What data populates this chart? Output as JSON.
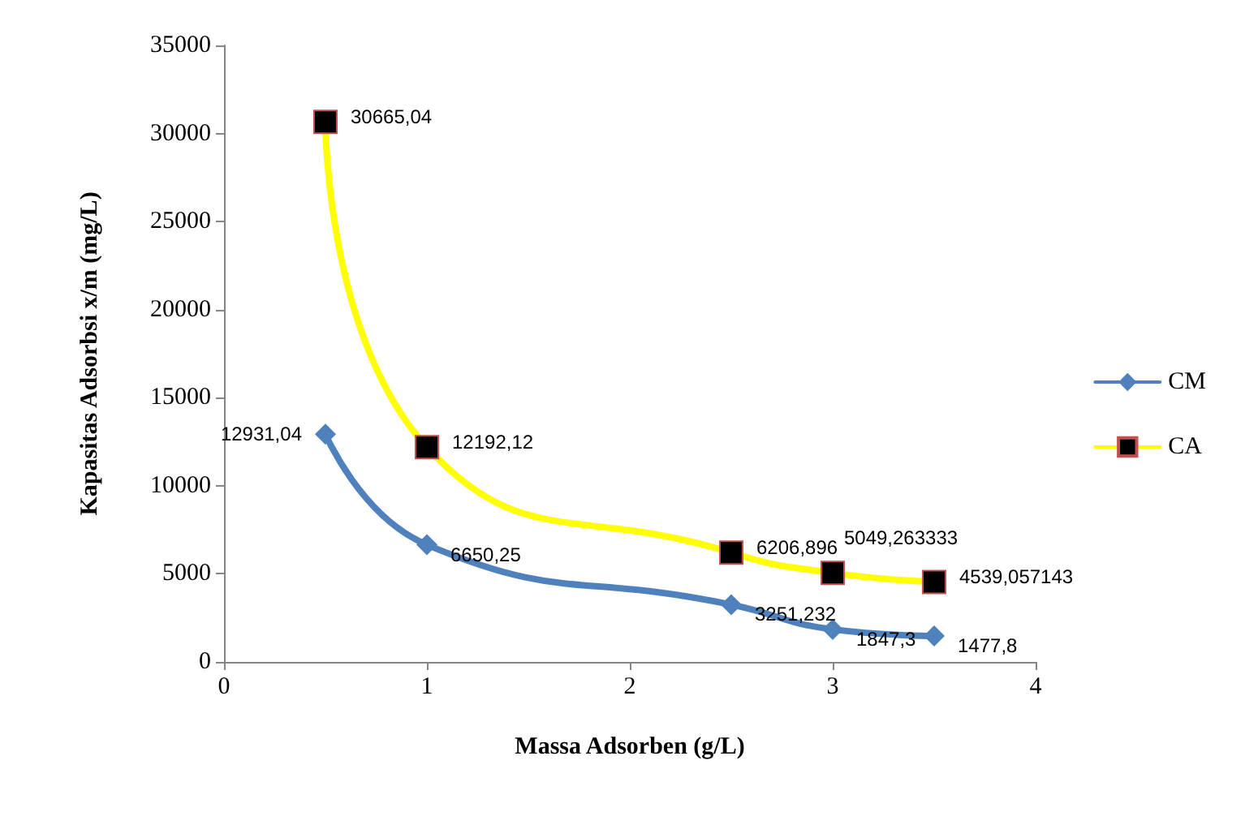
{
  "chart_data": {
    "type": "line",
    "xlabel": "Massa Adsorben (g/L)",
    "ylabel": "Kapasitas Adsorbsi x/m (mg/L)",
    "x": [
      0.5,
      1,
      2.5,
      3,
      3.5
    ],
    "xlim": [
      0,
      4
    ],
    "xticks": [
      0,
      1,
      2,
      3,
      4
    ],
    "ylim": [
      0,
      35000
    ],
    "yticks": [
      0,
      5000,
      10000,
      15000,
      20000,
      25000,
      30000,
      35000
    ],
    "grid": false,
    "legend": "right",
    "series": [
      {
        "name": "CM",
        "color": "#4f81bd",
        "marker": "diamond",
        "values": [
          12931.04,
          6650.25,
          3251.232,
          1847.3,
          1477.8
        ],
        "value_labels": [
          "12931,04",
          "6650,25",
          "3251,232",
          "1847,3",
          "1477,8"
        ]
      },
      {
        "name": "CA",
        "color": "#ffff00",
        "marker": "square",
        "values": [
          30665.04,
          12192.12,
          6206.896,
          5049.263333,
          4539.057143
        ],
        "value_labels": [
          "30665,04",
          "12192,12",
          "6206,896",
          "5049,263333",
          "4539,057143"
        ]
      }
    ]
  }
}
